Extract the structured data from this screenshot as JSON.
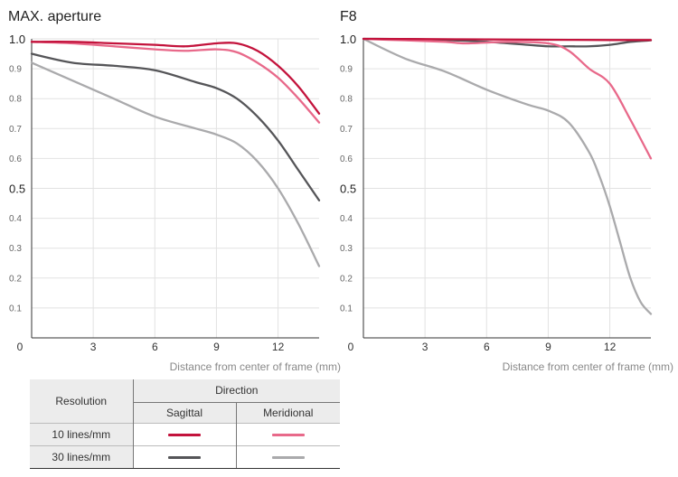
{
  "chart_data": [
    {
      "type": "line",
      "title": "MAX. aperture",
      "xlabel": "Distance from center of frame (mm)",
      "ylabel": "",
      "xlim": [
        0,
        14
      ],
      "ylim": [
        0,
        1.0
      ],
      "x_ticks": [
        "0",
        "3",
        "6",
        "9",
        "12"
      ],
      "y_ticks": [
        "1.0",
        "0.9",
        "0.8",
        "0.7",
        "0.6",
        "0.5",
        "0.4",
        "0.3",
        "0.2",
        "0.1"
      ],
      "grid": true,
      "series": [
        {
          "color": "#c3133c",
          "x": [
            0,
            2,
            4,
            6,
            7.5,
            9,
            10,
            11,
            12,
            13,
            14
          ],
          "y": [
            0.99,
            0.99,
            0.985,
            0.98,
            0.975,
            0.985,
            0.985,
            0.96,
            0.91,
            0.84,
            0.75
          ]
        },
        {
          "color": "#e8698a",
          "x": [
            0,
            2,
            4,
            6,
            7.5,
            9,
            10,
            11,
            12,
            13,
            14
          ],
          "y": [
            0.99,
            0.985,
            0.975,
            0.965,
            0.96,
            0.965,
            0.955,
            0.92,
            0.87,
            0.8,
            0.72
          ]
        },
        {
          "color": "#555558",
          "x": [
            0,
            2,
            4,
            6,
            8,
            9,
            10,
            11,
            12,
            13,
            14
          ],
          "y": [
            0.95,
            0.92,
            0.91,
            0.895,
            0.855,
            0.835,
            0.8,
            0.74,
            0.66,
            0.56,
            0.46
          ]
        },
        {
          "color": "#aaaaac",
          "x": [
            0,
            2,
            4,
            6,
            8,
            9,
            10,
            11,
            12,
            13,
            14
          ],
          "y": [
            0.92,
            0.86,
            0.8,
            0.74,
            0.7,
            0.68,
            0.65,
            0.59,
            0.5,
            0.38,
            0.24
          ]
        }
      ]
    },
    {
      "type": "line",
      "title": "F8",
      "xlabel": "Distance from center of frame (mm)",
      "ylabel": "",
      "xlim": [
        0,
        14
      ],
      "ylim": [
        0,
        1.0
      ],
      "x_ticks": [
        "0",
        "3",
        "6",
        "9",
        "12"
      ],
      "y_ticks": [
        "1.0",
        "0.9",
        "0.8",
        "0.7",
        "0.6",
        "0.5",
        "0.4",
        "0.3",
        "0.2",
        "0.1"
      ],
      "grid": true,
      "series": [
        {
          "color": "#c3133c",
          "x": [
            0,
            3,
            6,
            9,
            12,
            14
          ],
          "y": [
            1.0,
            0.999,
            0.998,
            0.997,
            0.996,
            0.996
          ]
        },
        {
          "color": "#e8698a",
          "x": [
            0,
            2,
            4,
            5,
            7,
            9,
            10,
            11,
            12,
            13,
            14
          ],
          "y": [
            1.0,
            0.995,
            0.99,
            0.985,
            0.99,
            0.985,
            0.96,
            0.9,
            0.85,
            0.73,
            0.6
          ]
        },
        {
          "color": "#555558",
          "x": [
            0,
            3,
            6,
            8,
            9,
            10,
            11,
            12,
            13,
            14
          ],
          "y": [
            1.0,
            0.998,
            0.99,
            0.98,
            0.975,
            0.975,
            0.975,
            0.98,
            0.99,
            0.995
          ]
        },
        {
          "color": "#aaaaac",
          "x": [
            0,
            2,
            4,
            6,
            8,
            9,
            10,
            11,
            11.5,
            12,
            12.5,
            13,
            13.5,
            14
          ],
          "y": [
            1.0,
            0.935,
            0.89,
            0.83,
            0.78,
            0.76,
            0.72,
            0.62,
            0.54,
            0.44,
            0.32,
            0.2,
            0.12,
            0.08
          ]
        }
      ]
    }
  ],
  "legend": {
    "resolution_header": "Resolution",
    "direction_header": "Direction",
    "sagittal_label": "Sagittal",
    "meridional_label": "Meridional",
    "rows": [
      {
        "label": "10 lines/mm",
        "sagittal_color": "#c3133c",
        "meridional_color": "#e8698a"
      },
      {
        "label": "30 lines/mm",
        "sagittal_color": "#555558",
        "meridional_color": "#aaaaac"
      }
    ]
  }
}
